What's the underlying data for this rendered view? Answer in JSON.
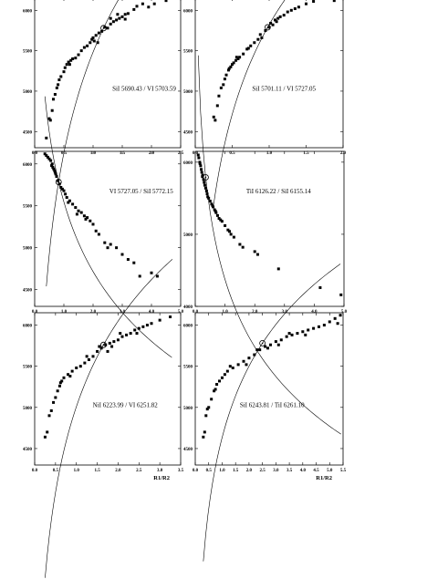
{
  "chart_data": [
    {
      "type": "scatter",
      "label": "SiI 5690.43 / VI 5703.59",
      "xlim": [
        0.0,
        2.5
      ],
      "ylim": [
        4300,
        6150
      ],
      "xticks": [
        "0.0",
        "0.5",
        "1.0",
        "1.5",
        "2.0",
        "2.5"
      ],
      "yticks": [
        "4500",
        "5000",
        "5500",
        "6000"
      ],
      "yticks_values": [
        4500,
        5000,
        5500,
        6000
      ],
      "xticks_values": [
        0.0,
        0.5,
        1.0,
        1.5,
        2.0,
        2.5
      ],
      "xlabel": "",
      "fit": {
        "a": 5780,
        "b": 1800,
        "x0": 1.18,
        "xmin": 0.2,
        "xmax": 2.3
      },
      "sun": [
        1.18,
        5780
      ],
      "points": [
        [
          0.2,
          4420
        ],
        [
          0.25,
          4660
        ],
        [
          0.27,
          4640
        ],
        [
          0.3,
          4760
        ],
        [
          0.32,
          4900
        ],
        [
          0.35,
          4960
        ],
        [
          0.38,
          5040
        ],
        [
          0.4,
          5080
        ],
        [
          0.42,
          5140
        ],
        [
          0.45,
          5180
        ],
        [
          0.5,
          5240
        ],
        [
          0.52,
          5290
        ],
        [
          0.55,
          5330
        ],
        [
          0.58,
          5360
        ],
        [
          0.6,
          5330
        ],
        [
          0.62,
          5380
        ],
        [
          0.65,
          5400
        ],
        [
          0.7,
          5410
        ],
        [
          0.75,
          5450
        ],
        [
          0.8,
          5500
        ],
        [
          0.85,
          5540
        ],
        [
          0.9,
          5560
        ],
        [
          0.95,
          5600
        ],
        [
          0.98,
          5640
        ],
        [
          1.0,
          5660
        ],
        [
          1.02,
          5620
        ],
        [
          1.05,
          5690
        ],
        [
          1.1,
          5720
        ],
        [
          1.15,
          5740
        ],
        [
          1.2,
          5790
        ],
        [
          1.25,
          5780
        ],
        [
          1.3,
          5830
        ],
        [
          1.35,
          5860
        ],
        [
          1.4,
          5880
        ],
        [
          1.45,
          5900
        ],
        [
          1.5,
          5920
        ],
        [
          1.55,
          5950
        ],
        [
          1.6,
          5960
        ],
        [
          1.7,
          6010
        ],
        [
          1.75,
          6050
        ],
        [
          1.85,
          6080
        ],
        [
          1.95,
          6040
        ],
        [
          2.05,
          6080
        ],
        [
          2.25,
          6120
        ],
        [
          1.08,
          5600
        ],
        [
          1.3,
          5900
        ],
        [
          1.55,
          5890
        ],
        [
          1.42,
          5950
        ]
      ]
    },
    {
      "type": "scatter",
      "label": "SiI 5701.11 / VI 5727.05",
      "xlim": [
        0.0,
        2.0
      ],
      "ylim": [
        4300,
        6150
      ],
      "xticks": [
        "0.0",
        "0.5",
        "1.0",
        "1.5",
        "2.0"
      ],
      "yticks": [
        "4500",
        "5000",
        "5500",
        "6000"
      ],
      "yticks_values": [
        4500,
        5000,
        5500,
        6000
      ],
      "xticks_values": [
        0.0,
        0.5,
        1.0,
        1.5,
        2.0
      ],
      "xlabel": "",
      "fit": {
        "a": 5790,
        "b": 1600,
        "x0": 0.98,
        "xmin": 0.25,
        "xmax": 1.6
      },
      "sun": [
        0.98,
        5790
      ],
      "points": [
        [
          0.25,
          4680
        ],
        [
          0.27,
          4640
        ],
        [
          0.3,
          4820
        ],
        [
          0.32,
          4940
        ],
        [
          0.35,
          5040
        ],
        [
          0.38,
          5080
        ],
        [
          0.4,
          5150
        ],
        [
          0.42,
          5200
        ],
        [
          0.45,
          5260
        ],
        [
          0.48,
          5300
        ],
        [
          0.5,
          5330
        ],
        [
          0.52,
          5350
        ],
        [
          0.55,
          5380
        ],
        [
          0.58,
          5400
        ],
        [
          0.6,
          5420
        ],
        [
          0.65,
          5460
        ],
        [
          0.7,
          5520
        ],
        [
          0.75,
          5560
        ],
        [
          0.8,
          5600
        ],
        [
          0.85,
          5640
        ],
        [
          0.88,
          5700
        ],
        [
          0.9,
          5660
        ],
        [
          0.95,
          5750
        ],
        [
          1.0,
          5790
        ],
        [
          1.02,
          5840
        ],
        [
          1.05,
          5820
        ],
        [
          1.08,
          5880
        ],
        [
          1.1,
          5860
        ],
        [
          1.15,
          5920
        ],
        [
          1.2,
          5940
        ],
        [
          1.25,
          5980
        ],
        [
          1.3,
          6000
        ],
        [
          1.35,
          6020
        ],
        [
          1.4,
          6040
        ],
        [
          1.5,
          6080
        ],
        [
          1.6,
          6110
        ],
        [
          1.88,
          6120
        ],
        [
          0.46,
          5280
        ],
        [
          0.56,
          5420
        ],
        [
          0.72,
          5530
        ],
        [
          1.12,
          5900
        ]
      ]
    },
    {
      "type": "scatter",
      "label": "VI 5727.05 / SiI 5772.15",
      "xlim": [
        0.0,
        5.0
      ],
      "ylim": [
        4300,
        6150
      ],
      "xticks": [
        "0.0",
        "1.0",
        "2.0",
        "3.0",
        "4.0",
        "5.0"
      ],
      "yticks": [
        "4500",
        "5000",
        "5500",
        "6000"
      ],
      "yticks_values": [
        4500,
        5000,
        5500,
        6000
      ],
      "xticks_values": [
        0.0,
        1.0,
        2.0,
        3.0,
        4.0,
        5.0
      ],
      "xlabel": "",
      "fit": {
        "a": 5785,
        "b": -1200,
        "x0": 0.82,
        "xmin": 0.35,
        "xmax": 4.7
      },
      "sun": [
        0.82,
        5785
      ],
      "points": [
        [
          0.35,
          6120
        ],
        [
          0.4,
          6100
        ],
        [
          0.45,
          6080
        ],
        [
          0.5,
          6060
        ],
        [
          0.55,
          6040
        ],
        [
          0.6,
          6000
        ],
        [
          0.62,
          5960
        ],
        [
          0.65,
          5940
        ],
        [
          0.7,
          5900
        ],
        [
          0.72,
          5880
        ],
        [
          0.75,
          5850
        ],
        [
          0.8,
          5800
        ],
        [
          0.85,
          5760
        ],
        [
          0.9,
          5720
        ],
        [
          0.95,
          5700
        ],
        [
          1.0,
          5680
        ],
        [
          1.05,
          5640
        ],
        [
          1.1,
          5600
        ],
        [
          1.2,
          5560
        ],
        [
          1.3,
          5520
        ],
        [
          1.4,
          5480
        ],
        [
          1.5,
          5440
        ],
        [
          1.6,
          5420
        ],
        [
          1.7,
          5380
        ],
        [
          1.8,
          5360
        ],
        [
          1.9,
          5320
        ],
        [
          2.0,
          5280
        ],
        [
          2.1,
          5200
        ],
        [
          2.2,
          5160
        ],
        [
          2.4,
          5060
        ],
        [
          2.6,
          5040
        ],
        [
          2.8,
          5000
        ],
        [
          3.0,
          4920
        ],
        [
          3.2,
          4860
        ],
        [
          3.4,
          4820
        ],
        [
          3.6,
          4660
        ],
        [
          4.0,
          4700
        ],
        [
          4.2,
          4660
        ],
        [
          0.58,
          5980
        ],
        [
          0.68,
          5920
        ],
        [
          1.15,
          5540
        ],
        [
          1.45,
          5400
        ],
        [
          1.75,
          5340
        ],
        [
          2.5,
          5000
        ]
      ]
    },
    {
      "type": "scatter",
      "label": "TiI 6126.22 / SiI 6155.14",
      "xlim": [
        0.0,
        5.0
      ],
      "ylim": [
        4000,
        6150
      ],
      "xticks": [
        "0.0",
        "1.0",
        "2.0",
        "3.0",
        "4.0",
        "5.0"
      ],
      "yticks": [
        "4000",
        "5000",
        "6000"
      ],
      "yticks_values": [
        4000,
        5000,
        6000
      ],
      "xticks_values": [
        0.0,
        1.0,
        2.0,
        3.0,
        4.0,
        5.0
      ],
      "xlabel": "",
      "fit": {
        "a": 5790,
        "b": -1350,
        "x0": 0.35,
        "xmin": 0.1,
        "xmax": 4.9
      },
      "sun": [
        0.35,
        5790
      ],
      "points": [
        [
          0.1,
          6100
        ],
        [
          0.12,
          6060
        ],
        [
          0.15,
          6000
        ],
        [
          0.18,
          5950
        ],
        [
          0.2,
          5900
        ],
        [
          0.22,
          5860
        ],
        [
          0.25,
          5820
        ],
        [
          0.28,
          5760
        ],
        [
          0.3,
          5720
        ],
        [
          0.32,
          5680
        ],
        [
          0.35,
          5640
        ],
        [
          0.38,
          5600
        ],
        [
          0.4,
          5560
        ],
        [
          0.45,
          5500
        ],
        [
          0.5,
          5460
        ],
        [
          0.55,
          5420
        ],
        [
          0.6,
          5380
        ],
        [
          0.65,
          5340
        ],
        [
          0.7,
          5300
        ],
        [
          0.75,
          5260
        ],
        [
          0.8,
          5220
        ],
        [
          0.9,
          5180
        ],
        [
          1.0,
          5120
        ],
        [
          1.1,
          5060
        ],
        [
          1.2,
          5000
        ],
        [
          1.3,
          4960
        ],
        [
          1.5,
          4860
        ],
        [
          1.6,
          4820
        ],
        [
          2.0,
          4760
        ],
        [
          2.1,
          4720
        ],
        [
          2.8,
          4520
        ],
        [
          4.2,
          4260
        ],
        [
          4.9,
          4160
        ],
        [
          0.16,
          5980
        ],
        [
          0.24,
          5800
        ],
        [
          0.42,
          5520
        ],
        [
          0.58,
          5400
        ],
        [
          0.68,
          5320
        ],
        [
          0.85,
          5200
        ],
        [
          1.15,
          5040
        ]
      ]
    },
    {
      "type": "scatter",
      "label": "NiI 6223.99 / VI 6251.82",
      "xlim": [
        0.0,
        3.5
      ],
      "ylim": [
        4300,
        6150
      ],
      "xticks": [
        "0.0",
        "0.5",
        "1.0",
        "1.5",
        "2.0",
        "2.5",
        "3.0",
        "3.5"
      ],
      "yticks": [
        "4500",
        "5000",
        "5500",
        "6000"
      ],
      "yticks_values": [
        4500,
        5000,
        5500,
        6000
      ],
      "xticks_values": [
        0.0,
        0.5,
        1.0,
        1.5,
        2.0,
        2.5,
        3.0,
        3.5
      ],
      "xlabel": "R1/R2",
      "fit": {
        "a": 5760,
        "b": 1500,
        "x0": 1.65,
        "xmin": 0.25,
        "xmax": 3.3
      },
      "sun": [
        1.65,
        5760
      ],
      "points": [
        [
          0.25,
          4640
        ],
        [
          0.3,
          4700
        ],
        [
          0.35,
          4900
        ],
        [
          0.4,
          4960
        ],
        [
          0.45,
          5060
        ],
        [
          0.5,
          5120
        ],
        [
          0.55,
          5200
        ],
        [
          0.6,
          5260
        ],
        [
          0.65,
          5320
        ],
        [
          0.7,
          5360
        ],
        [
          0.8,
          5400
        ],
        [
          0.9,
          5440
        ],
        [
          1.0,
          5480
        ],
        [
          1.1,
          5500
        ],
        [
          1.2,
          5540
        ],
        [
          1.3,
          5580
        ],
        [
          1.4,
          5620
        ],
        [
          1.5,
          5680
        ],
        [
          1.6,
          5720
        ],
        [
          1.7,
          5760
        ],
        [
          1.8,
          5780
        ],
        [
          1.9,
          5800
        ],
        [
          2.0,
          5820
        ],
        [
          2.1,
          5860
        ],
        [
          2.2,
          5880
        ],
        [
          2.3,
          5900
        ],
        [
          2.4,
          5940
        ],
        [
          2.5,
          5960
        ],
        [
          2.6,
          5980
        ],
        [
          2.7,
          6000
        ],
        [
          2.8,
          6020
        ],
        [
          3.0,
          6060
        ],
        [
          3.25,
          6100
        ],
        [
          0.62,
          5300
        ],
        [
          0.85,
          5380
        ],
        [
          1.25,
          5620
        ],
        [
          1.55,
          5740
        ],
        [
          1.85,
          5740
        ],
        [
          2.05,
          5900
        ],
        [
          2.45,
          5900
        ],
        [
          1.75,
          5680
        ]
      ]
    },
    {
      "type": "scatter",
      "label": "SiI 6243.81 / TiI 6261.10",
      "xlim": [
        0.0,
        5.5
      ],
      "ylim": [
        4300,
        6150
      ],
      "xticks": [
        "0.0",
        "0.5",
        "1.0",
        "1.5",
        "2.0",
        "2.5",
        "3.0",
        "3.5",
        "4.0",
        "4.5",
        "5.0",
        "5.5"
      ],
      "yticks": [
        "4500",
        "5000",
        "5500",
        "6000"
      ],
      "yticks_values": [
        4500,
        5000,
        5500,
        6000
      ],
      "xticks_values": [
        0.0,
        0.5,
        1.0,
        1.5,
        2.0,
        2.5,
        3.0,
        3.5,
        4.0,
        4.5,
        5.0,
        5.5
      ],
      "xlabel": "R1/R2",
      "fit": {
        "a": 5780,
        "b": 1250,
        "x0": 2.5,
        "xmin": 0.3,
        "xmax": 5.4
      },
      "sun": [
        2.5,
        5780
      ],
      "points": [
        [
          0.3,
          4640
        ],
        [
          0.35,
          4700
        ],
        [
          0.4,
          4900
        ],
        [
          0.5,
          5000
        ],
        [
          0.6,
          5100
        ],
        [
          0.7,
          5200
        ],
        [
          0.8,
          5280
        ],
        [
          0.9,
          5320
        ],
        [
          1.0,
          5360
        ],
        [
          1.1,
          5400
        ],
        [
          1.2,
          5440
        ],
        [
          1.4,
          5480
        ],
        [
          1.6,
          5520
        ],
        [
          1.8,
          5560
        ],
        [
          2.0,
          5600
        ],
        [
          2.2,
          5640
        ],
        [
          2.4,
          5700
        ],
        [
          2.6,
          5740
        ],
        [
          2.8,
          5760
        ],
        [
          3.0,
          5800
        ],
        [
          3.2,
          5820
        ],
        [
          3.4,
          5860
        ],
        [
          3.6,
          5880
        ],
        [
          3.8,
          5900
        ],
        [
          4.0,
          5920
        ],
        [
          4.2,
          5940
        ],
        [
          4.4,
          5960
        ],
        [
          4.6,
          5980
        ],
        [
          4.8,
          6000
        ],
        [
          5.0,
          6040
        ],
        [
          5.2,
          6080
        ],
        [
          5.4,
          6120
        ],
        [
          0.45,
          4980
        ],
        [
          0.75,
          5220
        ],
        [
          1.3,
          5500
        ],
        [
          1.9,
          5520
        ],
        [
          2.3,
          5700
        ],
        [
          2.7,
          5720
        ],
        [
          3.1,
          5760
        ],
        [
          3.5,
          5900
        ],
        [
          4.1,
          5880
        ],
        [
          5.3,
          6020
        ]
      ]
    }
  ]
}
